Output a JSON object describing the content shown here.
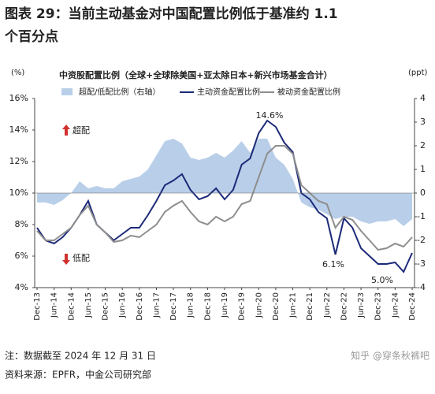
{
  "title_lines": [
    "图表 29：当前主动基金对中国配置比例低于基准约 1.1",
    "个百分点"
  ],
  "notes": [
    "注：数据截至 2024 年 12 月 31 日",
    "资料来源：EPFR，中金公司研究部"
  ],
  "watermark": "知乎 @穿条秋裤吧",
  "chart_data": {
    "type": "line",
    "title": "中资股配置比例（全球+全球除美国+亚太除日本+新兴市场基金合计）",
    "ylabel": "(%)",
    "y2label": "(ppt)",
    "categories": [
      "Dec-13",
      null,
      "Jun-14",
      null,
      "Dec-14",
      null,
      "Jun-15",
      null,
      "Dec-15",
      null,
      "Jun-16",
      null,
      "Dec-16",
      null,
      "Jun-17",
      null,
      "Dec-17",
      null,
      "Jun-18",
      null,
      "Dec-18",
      null,
      "Jun-19",
      null,
      "Dec-19",
      null,
      "Jun-20",
      null,
      "Dec-20",
      null,
      "Jun-21",
      null,
      "Dec-21",
      null,
      "Jun-22",
      null,
      "Dec-22",
      null,
      "Jun-23",
      null,
      "Dec-23",
      null,
      "Jun-24",
      null,
      "Dec-24"
    ],
    "series": [
      {
        "name": "超配/低配比例（右轴）",
        "style": "area",
        "axis": "y2",
        "color": "#b9cfe9",
        "values": [
          -0.4,
          -0.4,
          -0.5,
          -0.3,
          0.0,
          0.5,
          0.2,
          0.3,
          0.2,
          0.2,
          0.5,
          0.6,
          0.7,
          1.0,
          1.6,
          2.2,
          2.3,
          2.1,
          1.5,
          1.4,
          1.5,
          1.7,
          1.5,
          1.8,
          2.2,
          1.7,
          2.3,
          2.3,
          1.5,
          1.2,
          0.6,
          -0.4,
          -0.6,
          -0.7,
          -0.9,
          -1.1,
          -1.0,
          -1.0,
          -1.2,
          -1.3,
          -1.2,
          -1.2,
          -1.1,
          -1.4,
          -1.1
        ]
      },
      {
        "name": "主动资金配置比例",
        "style": "line",
        "color": "#1c2a78",
        "values": [
          7.8,
          7.0,
          6.8,
          7.2,
          7.8,
          8.6,
          9.5,
          8.0,
          7.5,
          7.0,
          7.4,
          7.8,
          7.8,
          8.6,
          9.5,
          10.5,
          10.8,
          11.2,
          10.2,
          9.6,
          9.8,
          10.3,
          9.6,
          10.2,
          11.8,
          12.2,
          13.8,
          14.6,
          14.2,
          13.2,
          12.6,
          10.0,
          9.6,
          8.8,
          8.4,
          6.1,
          8.4,
          7.8,
          6.5,
          6.0,
          5.5,
          5.5,
          5.6,
          5.0,
          6.2
        ]
      },
      {
        "name": "被动资金配置比例",
        "style": "line",
        "color": "#8e8e8e",
        "values": [
          7.6,
          7.0,
          7.0,
          7.4,
          7.8,
          8.6,
          9.2,
          8.0,
          7.5,
          6.9,
          7.0,
          7.3,
          7.2,
          7.6,
          8.0,
          8.8,
          9.2,
          9.5,
          8.8,
          8.2,
          8.0,
          8.5,
          8.2,
          8.5,
          9.3,
          9.5,
          11.0,
          12.5,
          13.0,
          13.0,
          12.5,
          10.5,
          10.0,
          9.5,
          9.3,
          7.8,
          8.5,
          8.3,
          7.6,
          7.0,
          6.4,
          6.5,
          6.8,
          6.6,
          7.2
        ]
      }
    ],
    "ylim": [
      4,
      16
    ],
    "yticks": [
      {
        "value": 4,
        "label": "4%"
      },
      {
        "value": 6,
        "label": "6%"
      },
      {
        "value": 8,
        "label": "8%"
      },
      {
        "value": 10,
        "label": "10%"
      },
      {
        "value": 12,
        "label": "12%"
      },
      {
        "value": 14,
        "label": "14%"
      },
      {
        "value": 16,
        "label": "16%"
      }
    ],
    "y2lim": [
      -4,
      4
    ],
    "y2ticks": [
      -4,
      -3,
      -2,
      -1,
      0,
      1,
      2,
      3,
      4
    ],
    "annotations": [
      "14.6%",
      "6.1%",
      "5.0%",
      "超配",
      "低配"
    ]
  }
}
